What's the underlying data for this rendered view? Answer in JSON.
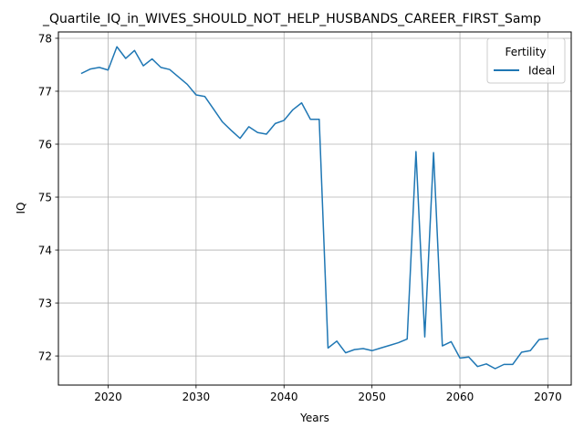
{
  "chart_data": {
    "type": "line",
    "title": "_Quartile_IQ_in_WIVES_SHOULD_NOT_HELP_HUSBANDS_CAREER_FIRST_Samp",
    "xlabel": "Years",
    "ylabel": "IQ",
    "xlim": [
      2014.35,
      2072.65
    ],
    "ylim": [
      71.45,
      78.12
    ],
    "grid": true,
    "x_ticks": [
      2020,
      2030,
      2040,
      2050,
      2060,
      2070
    ],
    "y_ticks": [
      72,
      73,
      74,
      75,
      76,
      77,
      78
    ],
    "legend": {
      "title": "Fertility",
      "position": "top-right"
    },
    "series": [
      {
        "name": "Ideal",
        "color": "#1f77b4",
        "x": [
          2017,
          2018,
          2019,
          2020,
          2021,
          2022,
          2023,
          2024,
          2025,
          2026,
          2027,
          2028,
          2029,
          2030,
          2031,
          2032,
          2033,
          2034,
          2035,
          2036,
          2037,
          2038,
          2039,
          2040,
          2041,
          2042,
          2043,
          2044,
          2045,
          2046,
          2047,
          2048,
          2049,
          2050,
          2051,
          2052,
          2053,
          2054,
          2055,
          2056,
          2057,
          2058,
          2059,
          2060,
          2061,
          2062,
          2063,
          2064,
          2065,
          2066,
          2067,
          2068,
          2069,
          2070
        ],
        "y": [
          77.34,
          77.42,
          77.45,
          77.4,
          77.84,
          77.62,
          77.77,
          77.48,
          77.61,
          77.45,
          77.41,
          77.27,
          77.13,
          76.93,
          76.9,
          76.66,
          76.42,
          76.26,
          76.11,
          76.33,
          76.22,
          76.19,
          76.39,
          76.45,
          76.65,
          76.78,
          76.47,
          76.47,
          72.15,
          72.28,
          72.06,
          72.12,
          72.14,
          72.1,
          72.15,
          72.2,
          72.25,
          72.32,
          75.86,
          72.36,
          75.84,
          72.19,
          72.27,
          71.96,
          71.98,
          71.8,
          71.85,
          71.76,
          71.84,
          71.84,
          72.07,
          72.1,
          72.31,
          72.33
        ]
      }
    ]
  }
}
